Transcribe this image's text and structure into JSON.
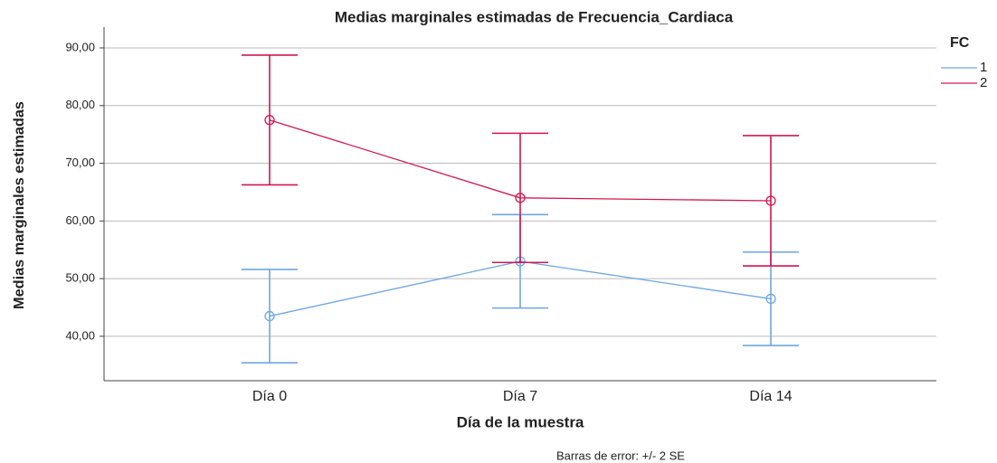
{
  "chart_data": {
    "type": "line",
    "title": "Medias marginales estimadas de Frecuencia_Cardiaca",
    "x_label": "Día de la muestra",
    "y_label": "Medias marginales estimadas",
    "footnote": "Barras de error: +/- 2 SE",
    "legend_title": "FC",
    "legend_position": "right",
    "categories": [
      "Día 0",
      "Día 7",
      "Día 14"
    ],
    "series": [
      {
        "name": "1",
        "color": "#6fa6e0",
        "values": [
          43.5,
          53.0,
          46.5
        ],
        "errors": [
          8.1,
          8.1,
          8.1
        ]
      },
      {
        "name": "2",
        "color": "#d2174d",
        "values": [
          77.5,
          64.0,
          63.5
        ],
        "errors": [
          11.25,
          11.2,
          11.3
        ]
      }
    ],
    "ylim": [
      32.3,
      93.6
    ],
    "yticks": [
      {
        "value": 40,
        "label": "40,00"
      },
      {
        "value": 50,
        "label": "50,00"
      },
      {
        "value": 60,
        "label": "60,00"
      },
      {
        "value": 70,
        "label": "70,00"
      },
      {
        "value": 80,
        "label": "80,00"
      },
      {
        "value": 90,
        "label": "90,00"
      }
    ],
    "grid": true
  }
}
